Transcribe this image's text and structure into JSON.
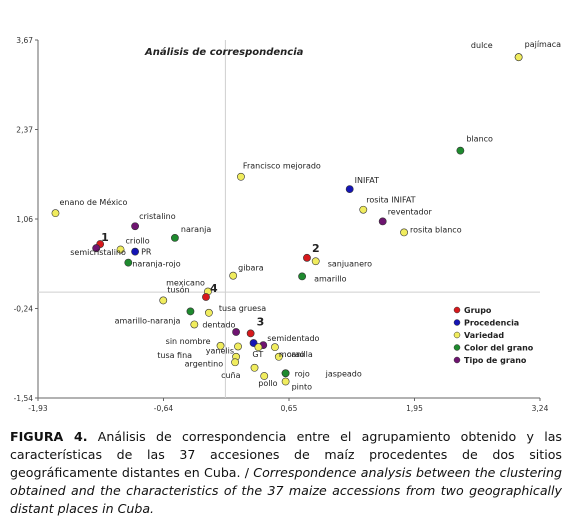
{
  "chart_data": {
    "type": "scatter",
    "title": "Análisis de correspondencia",
    "xlim": [
      -1.93,
      3.24
    ],
    "ylim": [
      -1.54,
      3.67
    ],
    "x_ticks": [
      "-1,93",
      "-0,64",
      "0,65",
      "1,95",
      "3,24"
    ],
    "y_ticks": [
      "3,67",
      "2,37",
      "1,06",
      "-0,24",
      "-1,54"
    ],
    "categories": [
      {
        "key": "grupo",
        "name": "Grupo",
        "color": "#d7191c"
      },
      {
        "key": "procedencia",
        "name": "Procedencia",
        "color": "#1515b5"
      },
      {
        "key": "variedad",
        "name": "Variedad",
        "color": "#f0ec5e"
      },
      {
        "key": "color",
        "name": "Color del grano",
        "color": "#1e8a2e"
      },
      {
        "key": "tipo",
        "name": "Tipo de grano",
        "color": "#6e1470"
      }
    ],
    "points": [
      {
        "label": "pajímaca",
        "x": 3.02,
        "y": 3.42,
        "cat": "tipo"
      },
      {
        "label": "dulce",
        "x": 3.02,
        "y": 3.42,
        "cat": "variedad"
      },
      {
        "label": "blanco",
        "x": 2.42,
        "y": 2.06,
        "cat": "color"
      },
      {
        "label": "Francisco mejorado",
        "x": 0.16,
        "y": 1.68,
        "cat": "variedad"
      },
      {
        "label": "INIFAT",
        "x": 1.28,
        "y": 1.5,
        "cat": "procedencia"
      },
      {
        "label": "rosita INIFAT",
        "x": 1.42,
        "y": 1.2,
        "cat": "variedad"
      },
      {
        "label": "reventador",
        "x": 1.62,
        "y": 1.03,
        "cat": "tipo"
      },
      {
        "label": "rosita blanco",
        "x": 1.84,
        "y": 0.87,
        "cat": "variedad"
      },
      {
        "label": "enano de México",
        "x": -1.75,
        "y": 1.15,
        "cat": "variedad"
      },
      {
        "label": "cristalino",
        "x": -0.93,
        "y": 0.96,
        "cat": "tipo"
      },
      {
        "label": "naranja",
        "x": -0.52,
        "y": 0.79,
        "cat": "color"
      },
      {
        "label": "criollo",
        "x": -1.08,
        "y": 0.62,
        "cat": "variedad"
      },
      {
        "label": "PR",
        "x": -0.93,
        "y": 0.59,
        "cat": "procedencia"
      },
      {
        "label": "1",
        "x": -1.29,
        "y": 0.7,
        "cat": "grupo"
      },
      {
        "label": "",
        "x": -1.33,
        "y": 0.64,
        "cat": "tipo"
      },
      {
        "label": "semicristalino",
        "x": -1.33,
        "y": 0.64,
        "cat": "tipo"
      },
      {
        "label": "naranja-rojo",
        "x": -1.0,
        "y": 0.43,
        "cat": "color"
      },
      {
        "label": "2",
        "x": 0.84,
        "y": 0.5,
        "cat": "grupo"
      },
      {
        "label": "sanjuanero",
        "x": 0.93,
        "y": 0.45,
        "cat": "variedad"
      },
      {
        "label": "amarillo",
        "x": 0.79,
        "y": 0.23,
        "cat": "color"
      },
      {
        "label": "gibara",
        "x": 0.08,
        "y": 0.24,
        "cat": "variedad"
      },
      {
        "label": "mexicano",
        "x": -0.18,
        "y": 0.01,
        "cat": "variedad"
      },
      {
        "label": "4",
        "x": -0.2,
        "y": -0.07,
        "cat": "grupo"
      },
      {
        "label": "tusón",
        "x": -0.64,
        "y": -0.12,
        "cat": "variedad"
      },
      {
        "label": "amarillo-naranja",
        "x": -0.36,
        "y": -0.28,
        "cat": "color"
      },
      {
        "label": "tusa gruesa",
        "x": -0.17,
        "y": -0.3,
        "cat": "variedad"
      },
      {
        "label": "dentado",
        "x": -0.32,
        "y": -0.47,
        "cat": "variedad"
      },
      {
        "label": "3",
        "x": 0.26,
        "y": -0.6,
        "cat": "grupo"
      },
      {
        "label": "",
        "x": 0.11,
        "y": -0.58,
        "cat": "tipo"
      },
      {
        "label": "semidentado",
        "x": 0.39,
        "y": -0.77,
        "cat": "tipo"
      },
      {
        "label": "",
        "x": 0.29,
        "y": -0.74,
        "cat": "procedencia"
      },
      {
        "label": "sin nombre",
        "x": -0.05,
        "y": -0.78,
        "cat": "variedad"
      },
      {
        "label": "yanelis",
        "x": 0.13,
        "y": -0.79,
        "cat": "variedad"
      },
      {
        "label": "GT",
        "x": 0.34,
        "y": -0.8,
        "cat": "variedad"
      },
      {
        "label": "morao",
        "x": 0.51,
        "y": -0.8,
        "cat": "variedad"
      },
      {
        "label": "canilla",
        "x": 0.55,
        "y": -0.94,
        "cat": "variedad"
      },
      {
        "label": "tusa fina",
        "x": 0.11,
        "y": -0.94,
        "cat": "variedad"
      },
      {
        "label": "argentino",
        "x": 0.1,
        "y": -1.02,
        "cat": "variedad"
      },
      {
        "label": "cuña",
        "x": 0.3,
        "y": -1.1,
        "cat": "variedad"
      },
      {
        "label": "rojo",
        "x": 0.62,
        "y": -1.18,
        "cat": "color"
      },
      {
        "label": "jaspeado",
        "x": 0.62,
        "y": -1.18,
        "cat": "color"
      },
      {
        "label": "pollo",
        "x": 0.4,
        "y": -1.22,
        "cat": "variedad"
      },
      {
        "label": "pinto",
        "x": 0.62,
        "y": -1.3,
        "cat": "variedad"
      }
    ]
  },
  "caption": {
    "fig_label": "FIGURA 4.",
    "es_text": " Análisis de correspondencia entre el agrupamiento obtenido y las características de las 37 accesiones de maíz procedentes de dos sitios geográficamente distantes en Cuba. / ",
    "en_text": "Correspondence analysis between the clustering obtained and the characteristics of the 37 maize accessions from two geographically distant places in Cuba."
  }
}
